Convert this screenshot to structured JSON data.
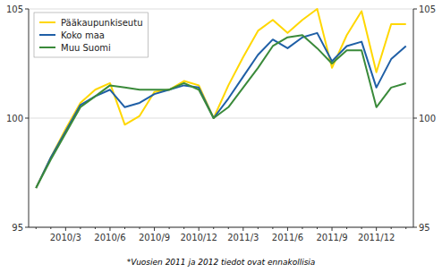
{
  "chart_data": {
    "type": "line",
    "categories": [
      null,
      null,
      "2010/3",
      null,
      null,
      "2010/6",
      null,
      null,
      "2010/9",
      null,
      null,
      "2010/12",
      null,
      null,
      "2011/3",
      null,
      null,
      "2011/6",
      null,
      null,
      "2011/9",
      null,
      null,
      "2011/12",
      null,
      null
    ],
    "series": [
      {
        "name": "Pääkaupunkiseutu",
        "color": "#FFD700",
        "values": [
          96.8,
          98.2,
          99.5,
          100.7,
          101.3,
          101.6,
          99.7,
          100.1,
          101.2,
          101.3,
          101.7,
          101.5,
          100.0,
          101.5,
          102.8,
          104.0,
          104.5,
          103.9,
          104.5,
          105.0,
          102.3,
          103.8,
          104.9,
          102.1,
          104.3,
          104.3
        ]
      },
      {
        "name": "Koko maa",
        "color": "#1F5FA6",
        "values": [
          96.8,
          98.2,
          99.4,
          100.6,
          101.0,
          101.3,
          100.5,
          100.7,
          101.1,
          101.3,
          101.5,
          101.4,
          100.0,
          100.9,
          101.9,
          102.9,
          103.6,
          103.2,
          103.7,
          103.9,
          102.6,
          103.3,
          103.5,
          101.4,
          102.7,
          103.3
        ]
      },
      {
        "name": "Muu Suomi",
        "color": "#3A8A3A",
        "values": [
          96.8,
          98.1,
          99.3,
          100.5,
          101.0,
          101.5,
          101.4,
          101.3,
          101.3,
          101.3,
          101.6,
          101.3,
          100.0,
          100.5,
          101.4,
          102.3,
          103.3,
          103.7,
          103.8,
          103.2,
          102.5,
          103.1,
          103.1,
          100.5,
          101.4,
          101.6
        ]
      }
    ],
    "ylim": [
      95,
      105
    ],
    "yticks": [
      95,
      100,
      105
    ],
    "y2lim": [
      95,
      105
    ],
    "y2ticks": [
      95,
      100,
      105
    ],
    "grid": true,
    "legend": "top-left",
    "annotations": [
      "*Vuosien 2011 ja 2012 tiedot ovat ennakollisia"
    ]
  }
}
